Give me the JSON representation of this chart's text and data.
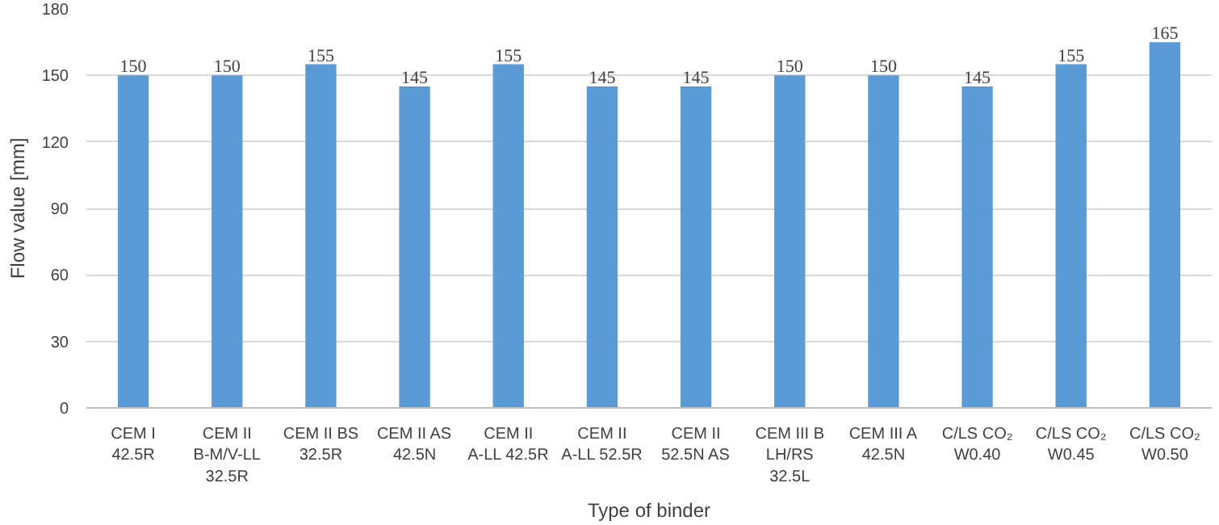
{
  "chart_data": {
    "type": "bar",
    "xlabel": "Type of binder",
    "ylabel": "Flow value [mm]",
    "categories": [
      "CEM I 42.5R",
      "CEM II B-M/V-LL 32.5R",
      "CEM II BS 32.5R",
      "CEM II AS 42.5N",
      "CEM II A-LL 42.5R",
      "CEM II A-LL 52.5R",
      "CEM II 52.5N AS",
      "CEM III B LH/RS 32.5L",
      "CEM III A 42.5N",
      "C/LS CO₂ W0.40",
      "C/LS CO₂ W0.45",
      "C/LS CO₂ W0.50"
    ],
    "values": [
      150,
      150,
      155,
      145,
      155,
      145,
      145,
      150,
      150,
      145,
      155,
      165
    ],
    "color": "#5b9bd5",
    "ylim": [
      0,
      180
    ],
    "yticks": [
      0,
      30,
      60,
      90,
      120,
      150,
      180
    ],
    "grid": "y",
    "data_labels": true
  }
}
